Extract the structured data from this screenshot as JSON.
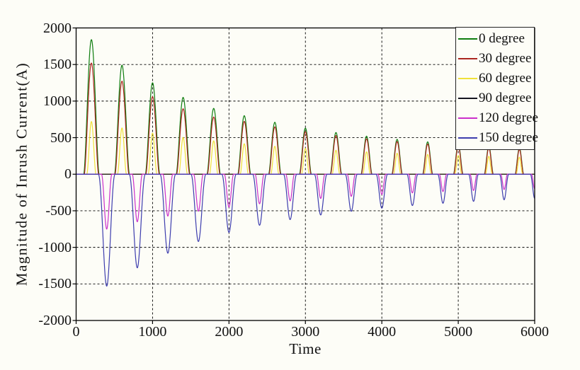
{
  "chart_data": {
    "type": "line",
    "title": "",
    "xlabel": "Time",
    "ylabel": "Magnitude of Inrush Current(A)",
    "xlim": [
      0,
      6000
    ],
    "ylim": [
      -2000,
      2000
    ],
    "xticks": [
      0,
      1000,
      2000,
      3000,
      4000,
      5000,
      6000
    ],
    "yticks": [
      -2000,
      -1500,
      -1000,
      -500,
      0,
      500,
      1000,
      1500,
      2000
    ],
    "grid": true,
    "grid_style": "dashed",
    "grid_color": "#000000",
    "axis_color": "#000000",
    "background_color": "#fdfdf7",
    "legend_position": "top-right-inside",
    "pulse_period": 400,
    "series": [
      {
        "name": "0 degree",
        "color": "#0f7d0f",
        "polarity": "positive",
        "peak_times": [
          200,
          600,
          1000,
          1400,
          1800,
          2200,
          2600,
          3000,
          3400,
          3800,
          4200,
          4600,
          5000,
          5400,
          5800
        ],
        "peak_values": [
          1840,
          1490,
          1250,
          1050,
          900,
          800,
          710,
          630,
          570,
          520,
          477,
          442,
          410,
          382,
          358
        ],
        "half_width_start": 100,
        "half_width_end": 55,
        "shape_power": 1.6
      },
      {
        "name": "30 degree",
        "color": "#ab2620",
        "polarity": "positive",
        "peak_times": [
          200,
          600,
          1000,
          1400,
          1800,
          2200,
          2600,
          3000,
          3400,
          3800,
          4200,
          4600,
          5000,
          5400,
          5800
        ],
        "peak_values": [
          1520,
          1272,
          1060,
          895,
          782,
          722,
          648,
          582,
          528,
          484,
          446,
          413,
          385,
          360,
          339
        ],
        "half_width_start": 93,
        "half_width_end": 52,
        "shape_power": 1.6
      },
      {
        "name": "60 degree",
        "color": "#f0e13a",
        "polarity": "positive",
        "peak_times": [
          200,
          600,
          1000,
          1400,
          1800,
          2200,
          2600,
          3000,
          3400,
          3800,
          4200,
          4600,
          5000,
          5400,
          5800
        ],
        "peak_values": [
          720,
          632,
          562,
          504,
          456,
          416,
          382,
          352,
          327,
          305,
          286,
          270,
          256,
          244,
          233
        ],
        "half_width_start": 60,
        "half_width_end": 42,
        "shape_power": 1.8
      },
      {
        "name": "90 degree",
        "color": "#15151f",
        "polarity": "flat",
        "flat": true,
        "baseline": 0
      },
      {
        "name": "120 degree",
        "color": "#cb2fcb",
        "polarity": "negative",
        "peak_times": [
          400,
          800,
          1200,
          1600,
          2000,
          2400,
          2800,
          3200,
          3600,
          4000,
          4400,
          4800,
          5200,
          5600,
          6000
        ],
        "peak_values": [
          -750,
          -650,
          -572,
          -506,
          -450,
          -404,
          -365,
          -331,
          -302,
          -277,
          -255,
          -237,
          -222,
          -209,
          -198
        ],
        "half_width_start": 68,
        "half_width_end": 42,
        "shape_power": 2.0
      },
      {
        "name": "150 degree",
        "color": "#3d3dae",
        "polarity": "negative",
        "peak_times": [
          400,
          800,
          1200,
          1600,
          2000,
          2400,
          2800,
          3200,
          3600,
          4000,
          4400,
          4800,
          5200,
          5600,
          6000
        ],
        "peak_values": [
          -1530,
          -1280,
          -1080,
          -920,
          -795,
          -698,
          -620,
          -557,
          -507,
          -464,
          -428,
          -397,
          -371,
          -349,
          -330
        ],
        "half_width_start": 110,
        "half_width_end": 58,
        "shape_power": 2.2
      }
    ]
  }
}
